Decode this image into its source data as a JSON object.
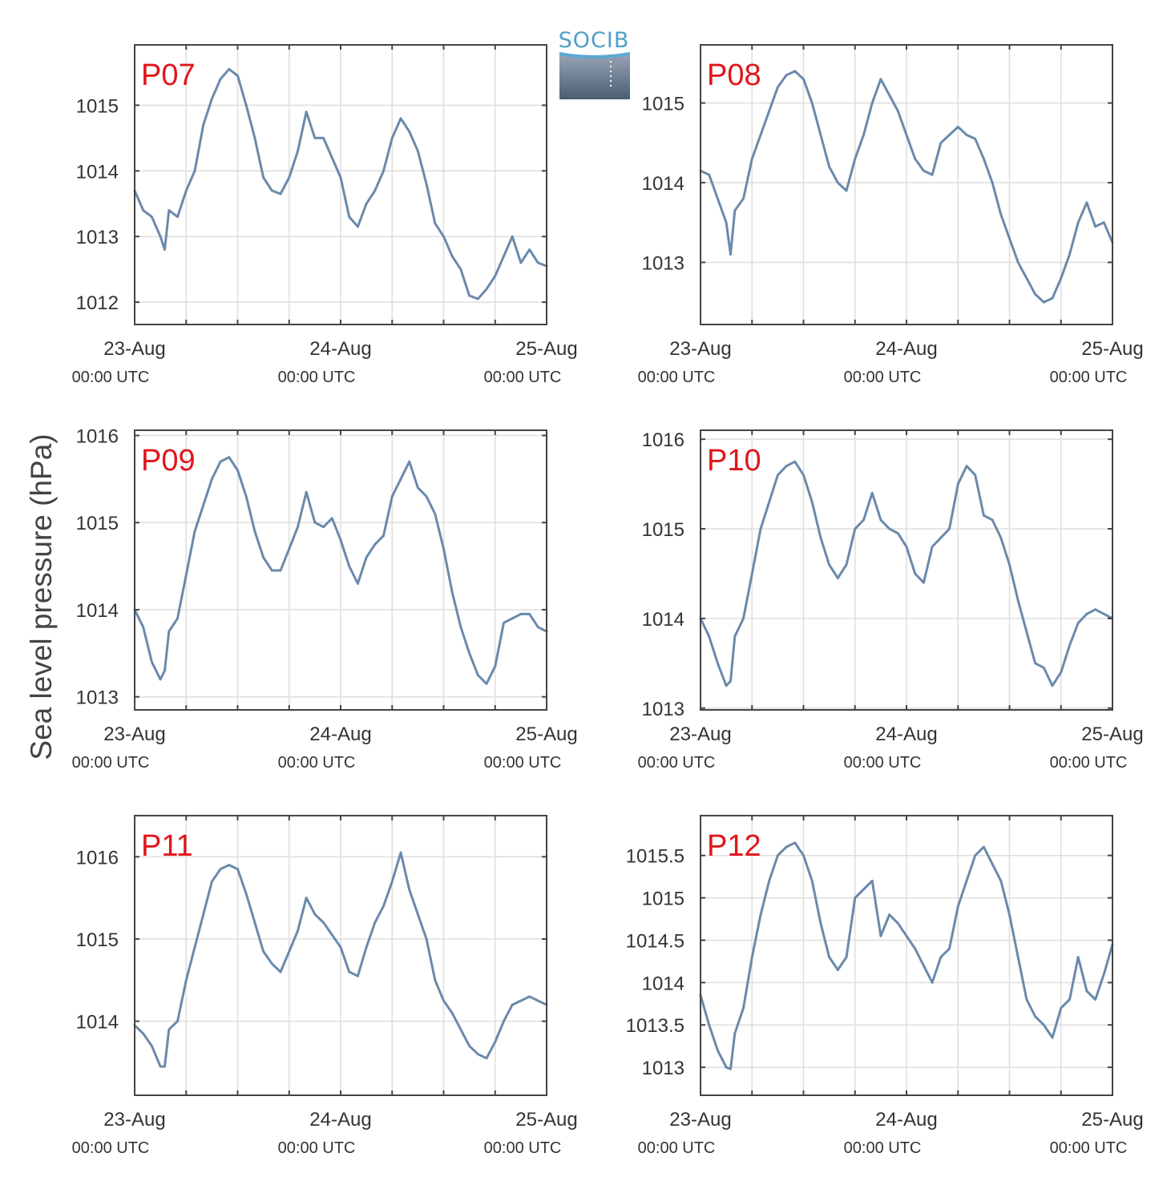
{
  "logo": {
    "text": "SOCIB"
  },
  "ylabel": "Sea level pressure (hPa)",
  "colors": {
    "series": "#6a8aab",
    "label": "#e0161c",
    "grid": "#dedede",
    "axis": "#444444"
  },
  "chart_data": [
    {
      "type": "line",
      "id": "P07",
      "label": "P07",
      "xlim": [
        0,
        48
      ],
      "ylim": [
        1011.66,
        1015.92
      ],
      "yticks": [
        1012,
        1013,
        1014,
        1015
      ],
      "xticks": [
        {
          "x": 0,
          "line1": "23-Aug",
          "line2": "00:00 UTC"
        },
        {
          "x": 24,
          "line1": "24-Aug",
          "line2": "00:00 UTC"
        },
        {
          "x": 48,
          "line1": "25-Aug",
          "line2": "00:00 UTC"
        }
      ],
      "x": [
        0,
        1,
        2,
        3,
        3.5,
        4,
        5,
        6,
        7,
        8,
        9,
        10,
        11,
        12,
        13,
        14,
        15,
        16,
        17,
        18,
        19,
        20,
        21,
        22,
        23,
        24,
        25,
        26,
        27,
        28,
        29,
        30,
        31,
        32,
        33,
        34,
        35,
        36,
        37,
        38,
        39,
        40,
        41,
        42,
        43,
        44,
        45,
        46,
        47,
        48
      ],
      "values": [
        1013.7,
        1013.4,
        1013.3,
        1013.0,
        1012.8,
        1013.4,
        1013.3,
        1013.7,
        1014.0,
        1014.7,
        1015.1,
        1015.4,
        1015.55,
        1015.45,
        1015.0,
        1014.5,
        1013.9,
        1013.7,
        1013.65,
        1013.9,
        1014.3,
        1014.9,
        1014.5,
        1014.5,
        1014.2,
        1013.9,
        1013.3,
        1013.15,
        1013.5,
        1013.7,
        1014.0,
        1014.5,
        1014.8,
        1014.6,
        1014.3,
        1013.8,
        1013.2,
        1013.0,
        1012.7,
        1012.5,
        1012.1,
        1012.05,
        1012.2,
        1012.4,
        1012.7,
        1013.0,
        1012.6,
        1012.8,
        1012.6,
        1012.55
      ]
    },
    {
      "type": "line",
      "id": "P08",
      "label": "P08",
      "xlim": [
        0,
        48
      ],
      "ylim": [
        1012.22,
        1015.73
      ],
      "yticks": [
        1013,
        1014,
        1015
      ],
      "xticks": [
        {
          "x": 0,
          "line1": "23-Aug",
          "line2": "00:00 UTC"
        },
        {
          "x": 24,
          "line1": "24-Aug",
          "line2": "00:00 UTC"
        },
        {
          "x": 48,
          "line1": "25-Aug",
          "line2": "00:00 UTC"
        }
      ],
      "x": [
        0,
        1,
        2,
        3,
        3.5,
        4,
        5,
        6,
        7,
        8,
        9,
        10,
        11,
        12,
        13,
        14,
        15,
        16,
        17,
        18,
        19,
        20,
        21,
        22,
        23,
        24,
        25,
        26,
        27,
        28,
        29,
        30,
        31,
        32,
        33,
        34,
        35,
        36,
        37,
        38,
        39,
        40,
        41,
        42,
        43,
        44,
        45,
        46,
        47,
        48
      ],
      "values": [
        1014.15,
        1014.1,
        1013.8,
        1013.5,
        1013.1,
        1013.65,
        1013.8,
        1014.3,
        1014.6,
        1014.9,
        1015.2,
        1015.35,
        1015.4,
        1015.3,
        1015.0,
        1014.6,
        1014.2,
        1014.0,
        1013.9,
        1014.3,
        1014.6,
        1015.0,
        1015.3,
        1015.1,
        1014.9,
        1014.6,
        1014.3,
        1014.15,
        1014.1,
        1014.5,
        1014.6,
        1014.7,
        1014.6,
        1014.55,
        1014.3,
        1014.0,
        1013.6,
        1013.3,
        1013.0,
        1012.8,
        1012.6,
        1012.5,
        1012.55,
        1012.8,
        1013.1,
        1013.5,
        1013.75,
        1013.45,
        1013.5,
        1013.25
      ]
    },
    {
      "type": "line",
      "id": "P09",
      "label": "P09",
      "xlim": [
        0,
        48
      ],
      "ylim": [
        1012.85,
        1016.06
      ],
      "yticks": [
        1013,
        1014,
        1015,
        1016
      ],
      "xticks": [
        {
          "x": 0,
          "line1": "23-Aug",
          "line2": "00:00 UTC"
        },
        {
          "x": 24,
          "line1": "24-Aug",
          "line2": "00:00 UTC"
        },
        {
          "x": 48,
          "line1": "25-Aug",
          "line2": "00:00 UTC"
        }
      ],
      "x": [
        0,
        1,
        2,
        3,
        3.5,
        4,
        5,
        6,
        7,
        8,
        9,
        10,
        11,
        12,
        13,
        14,
        15,
        16,
        17,
        18,
        19,
        20,
        21,
        22,
        23,
        24,
        25,
        26,
        27,
        28,
        29,
        30,
        31,
        32,
        33,
        34,
        35,
        36,
        37,
        38,
        39,
        40,
        41,
        42,
        43,
        44,
        45,
        46,
        47,
        48
      ],
      "values": [
        1014.0,
        1013.8,
        1013.4,
        1013.2,
        1013.3,
        1013.75,
        1013.9,
        1014.4,
        1014.9,
        1015.2,
        1015.5,
        1015.7,
        1015.75,
        1015.6,
        1015.3,
        1014.9,
        1014.6,
        1014.45,
        1014.45,
        1014.7,
        1014.95,
        1015.35,
        1015.0,
        1014.95,
        1015.05,
        1014.8,
        1014.5,
        1014.3,
        1014.6,
        1014.75,
        1014.85,
        1015.3,
        1015.5,
        1015.7,
        1015.4,
        1015.3,
        1015.1,
        1014.7,
        1014.2,
        1013.8,
        1013.5,
        1013.25,
        1013.15,
        1013.35,
        1013.85,
        1013.9,
        1013.95,
        1013.95,
        1013.8,
        1013.75
      ]
    },
    {
      "type": "line",
      "id": "P10",
      "label": "P10",
      "xlim": [
        0,
        48
      ],
      "ylim": [
        1012.98,
        1016.1
      ],
      "yticks": [
        1013,
        1014,
        1015,
        1016
      ],
      "xticks": [
        {
          "x": 0,
          "line1": "23-Aug",
          "line2": "00:00 UTC"
        },
        {
          "x": 24,
          "line1": "24-Aug",
          "line2": "00:00 UTC"
        },
        {
          "x": 48,
          "line1": "25-Aug",
          "line2": "00:00 UTC"
        }
      ],
      "x": [
        0,
        1,
        2,
        3,
        3.5,
        4,
        5,
        6,
        7,
        8,
        9,
        10,
        11,
        12,
        13,
        14,
        15,
        16,
        17,
        18,
        19,
        20,
        21,
        22,
        23,
        24,
        25,
        26,
        27,
        28,
        29,
        30,
        31,
        32,
        33,
        34,
        35,
        36,
        37,
        38,
        39,
        40,
        41,
        42,
        43,
        44,
        45,
        46,
        47,
        48
      ],
      "values": [
        1014.0,
        1013.8,
        1013.5,
        1013.25,
        1013.3,
        1013.8,
        1014.0,
        1014.5,
        1015.0,
        1015.3,
        1015.6,
        1015.7,
        1015.75,
        1015.6,
        1015.3,
        1014.9,
        1014.6,
        1014.45,
        1014.6,
        1015.0,
        1015.1,
        1015.4,
        1015.1,
        1015.0,
        1014.95,
        1014.8,
        1014.5,
        1014.4,
        1014.8,
        1014.9,
        1015.0,
        1015.5,
        1015.7,
        1015.6,
        1015.15,
        1015.1,
        1014.9,
        1014.6,
        1014.2,
        1013.85,
        1013.5,
        1013.45,
        1013.25,
        1013.4,
        1013.7,
        1013.95,
        1014.05,
        1014.1,
        1014.05,
        1014.0
      ]
    },
    {
      "type": "line",
      "id": "P11",
      "label": "P11",
      "xlim": [
        0,
        48
      ],
      "ylim": [
        1013.1,
        1016.5
      ],
      "yticks": [
        1014,
        1015,
        1016
      ],
      "xticks": [
        {
          "x": 0,
          "line1": "23-Aug",
          "line2": "00:00 UTC"
        },
        {
          "x": 24,
          "line1": "24-Aug",
          "line2": "00:00 UTC"
        },
        {
          "x": 48,
          "line1": "25-Aug",
          "line2": "00:00 UTC"
        }
      ],
      "x": [
        0,
        1,
        2,
        3,
        3.5,
        4,
        5,
        6,
        7,
        8,
        9,
        10,
        11,
        12,
        13,
        14,
        15,
        16,
        17,
        18,
        19,
        20,
        21,
        22,
        23,
        24,
        25,
        26,
        27,
        28,
        29,
        30,
        31,
        32,
        33,
        34,
        35,
        36,
        37,
        38,
        39,
        40,
        41,
        42,
        43,
        44,
        45,
        46,
        47,
        48
      ],
      "values": [
        1013.95,
        1013.85,
        1013.7,
        1013.45,
        1013.45,
        1013.9,
        1014.0,
        1014.5,
        1014.9,
        1015.3,
        1015.7,
        1015.85,
        1015.9,
        1015.85,
        1015.55,
        1015.2,
        1014.85,
        1014.7,
        1014.6,
        1014.85,
        1015.1,
        1015.5,
        1015.3,
        1015.2,
        1015.05,
        1014.9,
        1014.6,
        1014.55,
        1014.9,
        1015.2,
        1015.4,
        1015.7,
        1016.05,
        1015.6,
        1015.3,
        1015.0,
        1014.5,
        1014.25,
        1014.1,
        1013.9,
        1013.7,
        1013.6,
        1013.55,
        1013.75,
        1014.0,
        1014.2,
        1014.25,
        1014.3,
        1014.25,
        1014.2
      ]
    },
    {
      "type": "line",
      "id": "P12",
      "label": "P12",
      "xlim": [
        0,
        48
      ],
      "ylim": [
        1012.67,
        1015.97
      ],
      "yticks": [
        1013,
        1013.5,
        1014,
        1014.5,
        1015,
        1015.5
      ],
      "xticks": [
        {
          "x": 0,
          "line1": "23-Aug",
          "line2": "00:00 UTC"
        },
        {
          "x": 24,
          "line1": "24-Aug",
          "line2": "00:00 UTC"
        },
        {
          "x": 48,
          "line1": "25-Aug",
          "line2": "00:00 UTC"
        }
      ],
      "x": [
        0,
        1,
        2,
        3,
        3.5,
        4,
        5,
        6,
        7,
        8,
        9,
        10,
        11,
        12,
        13,
        14,
        15,
        16,
        17,
        18,
        19,
        20,
        21,
        22,
        23,
        24,
        25,
        26,
        27,
        28,
        29,
        30,
        31,
        32,
        33,
        34,
        35,
        36,
        37,
        38,
        39,
        40,
        41,
        42,
        43,
        44,
        45,
        46,
        47,
        48
      ],
      "values": [
        1013.85,
        1013.5,
        1013.2,
        1013.0,
        1012.98,
        1013.4,
        1013.7,
        1014.3,
        1014.8,
        1015.2,
        1015.5,
        1015.6,
        1015.65,
        1015.5,
        1015.2,
        1014.7,
        1014.3,
        1014.15,
        1014.3,
        1015.0,
        1015.1,
        1015.2,
        1014.55,
        1014.8,
        1014.7,
        1014.55,
        1014.4,
        1014.2,
        1014.0,
        1014.3,
        1014.4,
        1014.9,
        1015.2,
        1015.5,
        1015.6,
        1015.4,
        1015.2,
        1014.8,
        1014.3,
        1013.8,
        1013.6,
        1013.5,
        1013.35,
        1013.7,
        1013.8,
        1014.3,
        1013.9,
        1013.8,
        1014.1,
        1014.45
      ]
    }
  ]
}
